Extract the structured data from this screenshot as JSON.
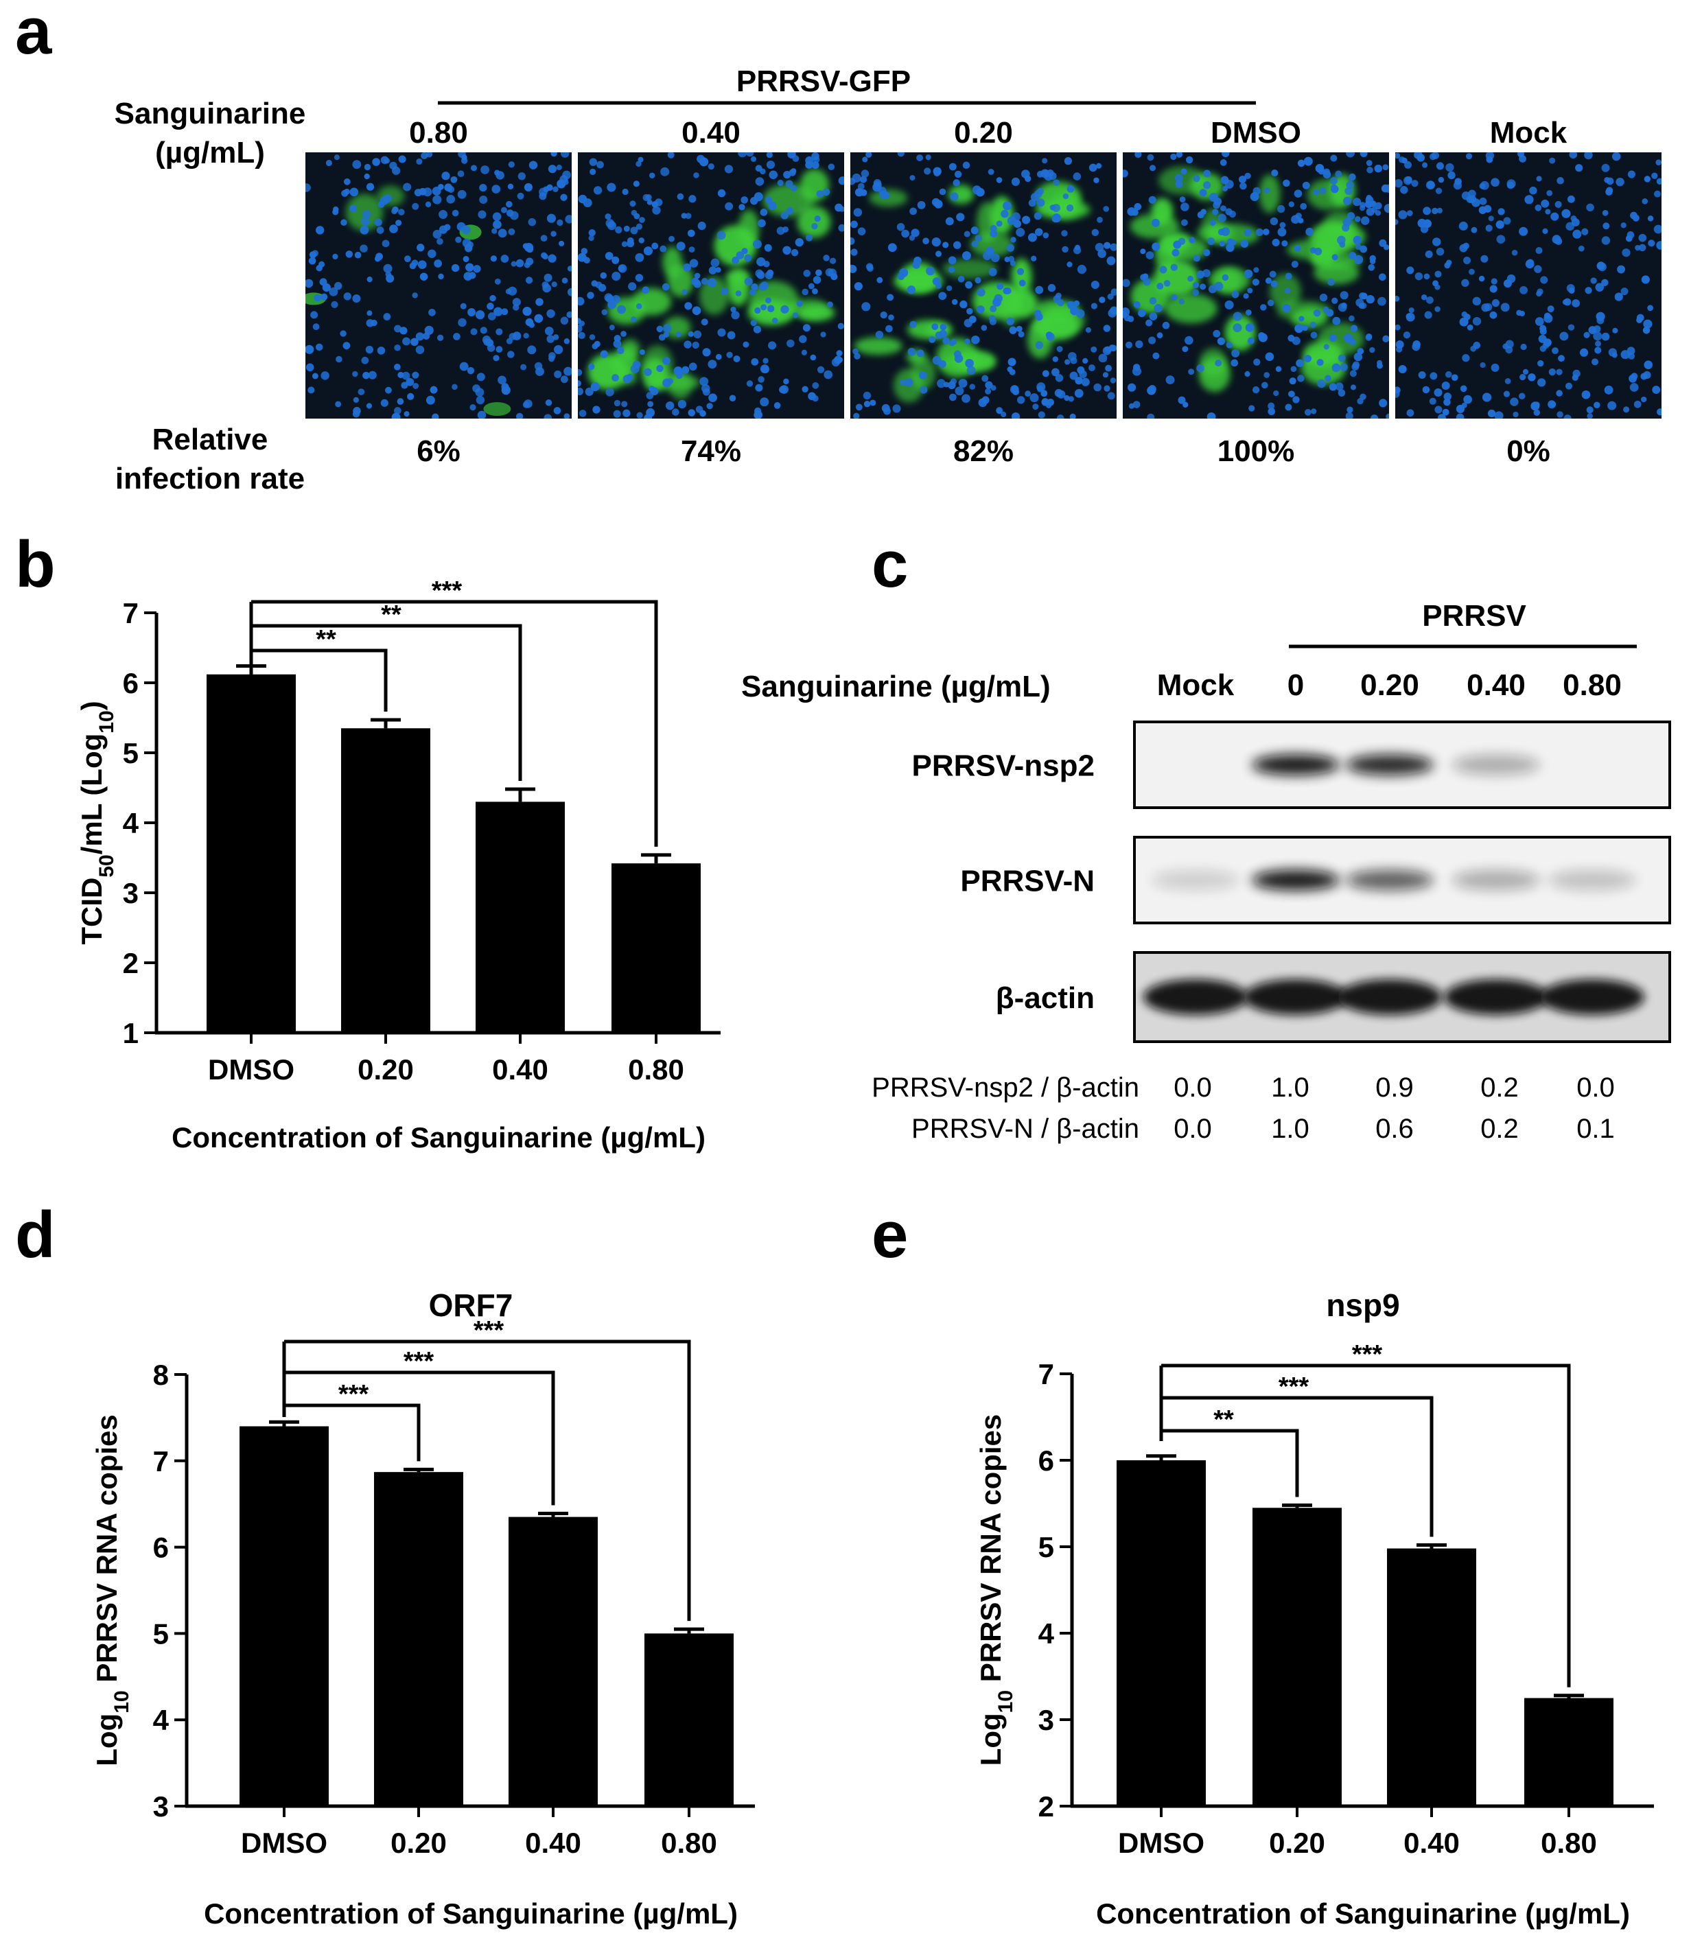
{
  "panels": {
    "a": "a",
    "b": "b",
    "c": "c",
    "d": "d",
    "e": "e"
  },
  "panel_a": {
    "group_label": "PRRSV-GFP",
    "row_label_1": "Sanguinarine",
    "row_label_2": "(µg/mL)",
    "rate_label_1": "Relative",
    "rate_label_2": "infection rate",
    "images": [
      {
        "label": "0.80",
        "rate": "6%",
        "green_level": 0.06
      },
      {
        "label": "0.40",
        "rate": "74%",
        "green_level": 0.74
      },
      {
        "label": "0.20",
        "rate": "82%",
        "green_level": 0.82
      },
      {
        "label": "DMSO",
        "rate": "100%",
        "green_level": 1.0
      },
      {
        "label": "Mock",
        "rate": "0%",
        "green_level": 0.0
      }
    ],
    "colors": {
      "nucleus": "#1f6fd6",
      "gfp": "#3fd13a",
      "background": "#0a1420"
    }
  },
  "panel_c": {
    "group_label": "PRRSV",
    "condition_label": "Sanguinarine (µg/mL)",
    "lanes": [
      "Mock",
      "0",
      "0.20",
      "0.40",
      "0.80"
    ],
    "blots": [
      {
        "label": "PRRSV-nsp2",
        "intensities": [
          0.0,
          1.0,
          0.9,
          0.2,
          0.0
        ]
      },
      {
        "label": "PRRSV-N",
        "intensities": [
          0.03,
          1.0,
          0.6,
          0.2,
          0.1
        ]
      },
      {
        "label": "β-actin",
        "intensities": [
          1.0,
          1.0,
          1.0,
          1.0,
          1.0
        ]
      }
    ],
    "quant_rows": [
      {
        "label": "PRRSV-nsp2 / β-actin",
        "values": [
          "0.0",
          "1.0",
          "0.9",
          "0.2",
          "0.0"
        ]
      },
      {
        "label": "PRRSV-N / β-actin",
        "values": [
          "0.0",
          "1.0",
          "0.6",
          "0.2",
          "0.1"
        ]
      }
    ]
  },
  "chart_data": [
    {
      "panel": "b",
      "type": "bar",
      "title": "",
      "categories": [
        "DMSO",
        "0.20",
        "0.40",
        "0.80"
      ],
      "values": [
        6.12,
        5.35,
        4.3,
        3.42
      ],
      "errors": [
        0.12,
        0.12,
        0.18,
        0.12
      ],
      "xlabel": "Concentration of Sanguinarine (µg/mL)",
      "ylabel_main": "TCID",
      "ylabel_sub": "50",
      "ylabel_mid": "/mL (Log",
      "ylabel_sub2": "10",
      "ylabel_end": ")",
      "ylim": [
        1,
        7
      ],
      "yticks": [
        1,
        2,
        3,
        4,
        5,
        6,
        7
      ],
      "significance": [
        "**",
        "**",
        "***"
      ],
      "bar_color": "#000000",
      "grid": false
    },
    {
      "panel": "d",
      "type": "bar",
      "title": "ORF7",
      "categories": [
        "DMSO",
        "0.20",
        "0.40",
        "0.80"
      ],
      "values": [
        7.4,
        6.87,
        6.35,
        5.0
      ],
      "errors": [
        0.05,
        0.03,
        0.04,
        0.05
      ],
      "xlabel": "Concentration of Sanguinarine (µg/mL)",
      "ylabel_main": "Log",
      "ylabel_sub": "10",
      "ylabel_rest": " PRRSV RNA copies",
      "ylim": [
        3,
        8
      ],
      "yticks": [
        3,
        4,
        5,
        6,
        7,
        8
      ],
      "significance": [
        "***",
        "***",
        "***"
      ],
      "bar_color": "#000000",
      "grid": false
    },
    {
      "panel": "e",
      "type": "bar",
      "title": "nsp9",
      "categories": [
        "DMSO",
        "0.20",
        "0.40",
        "0.80"
      ],
      "values": [
        6.0,
        5.45,
        4.98,
        3.25
      ],
      "errors": [
        0.05,
        0.03,
        0.04,
        0.03
      ],
      "xlabel": "Concentration of Sanguinarine (µg/mL)",
      "ylabel_main": "Log",
      "ylabel_sub": "10",
      "ylabel_rest": " PRRSV RNA copies",
      "ylim": [
        2,
        7
      ],
      "yticks": [
        2,
        3,
        4,
        5,
        6,
        7
      ],
      "significance": [
        "**",
        "***",
        "***"
      ],
      "bar_color": "#000000",
      "grid": false
    }
  ]
}
